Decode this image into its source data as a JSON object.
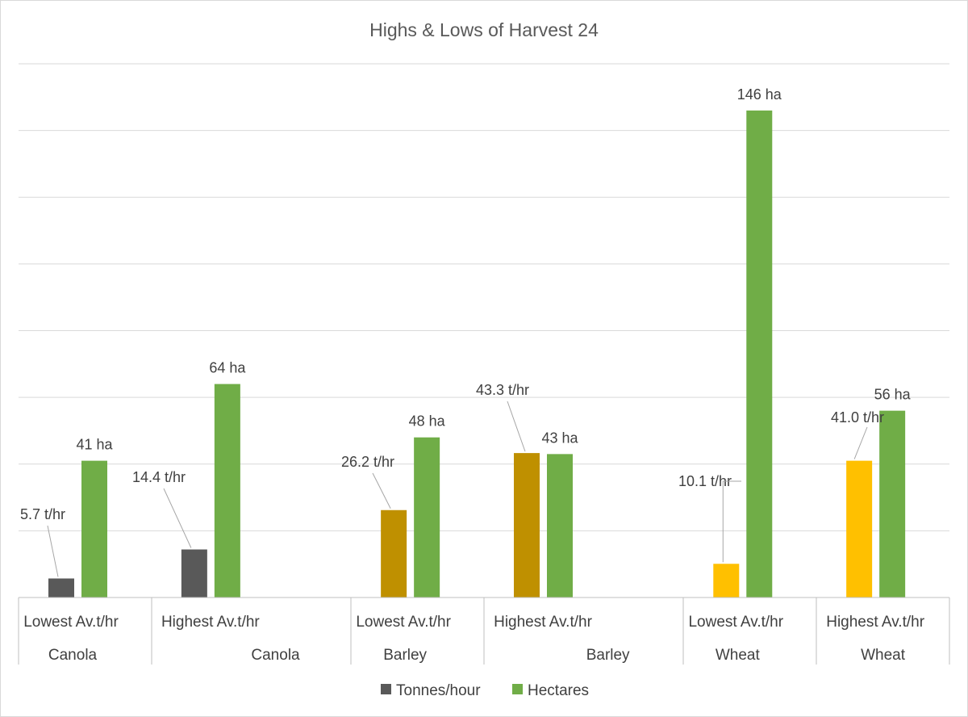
{
  "chart_data": {
    "type": "bar",
    "title": "Highs & Lows of Harvest 24",
    "xlabel": "",
    "ylabel": "",
    "grid": true,
    "legend_position": "bottom",
    "ylim": [
      0,
      160
    ],
    "groups": [
      {
        "crop": "Canola",
        "color": "#595959",
        "items": [
          {
            "category": "Lowest Av.t/hr",
            "tonnes_hour": 5.7,
            "tonnes_label": "5.7 t/hr",
            "hectares": 41,
            "hectares_label": "41 ha"
          },
          {
            "category": "Highest Av.t/hr",
            "tonnes_hour": 14.4,
            "tonnes_label": "14.4 t/hr",
            "hectares": 64,
            "hectares_label": "64 ha"
          }
        ]
      },
      {
        "crop": "Barley",
        "color": "#BF9000",
        "items": [
          {
            "category": "Lowest Av.t/hr",
            "tonnes_hour": 26.2,
            "tonnes_label": "26.2 t/hr",
            "hectares": 48,
            "hectares_label": "48 ha"
          },
          {
            "category": "Highest Av.t/hr",
            "tonnes_hour": 43.3,
            "tonnes_label": "43.3 t/hr",
            "hectares": 43,
            "hectares_label": "43 ha"
          }
        ]
      },
      {
        "crop": "Wheat",
        "color": "#FFC000",
        "items": [
          {
            "category": "Lowest Av.t/hr",
            "tonnes_hour": 10.1,
            "tonnes_label": "10.1 t/hr",
            "hectares": 146,
            "hectares_label": "146 ha"
          },
          {
            "category": "Highest Av.t/hr",
            "tonnes_hour": 41.0,
            "tonnes_label": "41.0 t/hr",
            "hectares": 56,
            "hectares_label": "56 ha"
          }
        ]
      }
    ],
    "series": [
      {
        "name": "Tonnes/hour",
        "color": "#595959"
      },
      {
        "name": "Hectares",
        "color": "#70AD47"
      }
    ],
    "colors": {
      "gridline": "#d9d9d9",
      "axis": "#bfbfbf",
      "hectares": "#70AD47"
    }
  }
}
